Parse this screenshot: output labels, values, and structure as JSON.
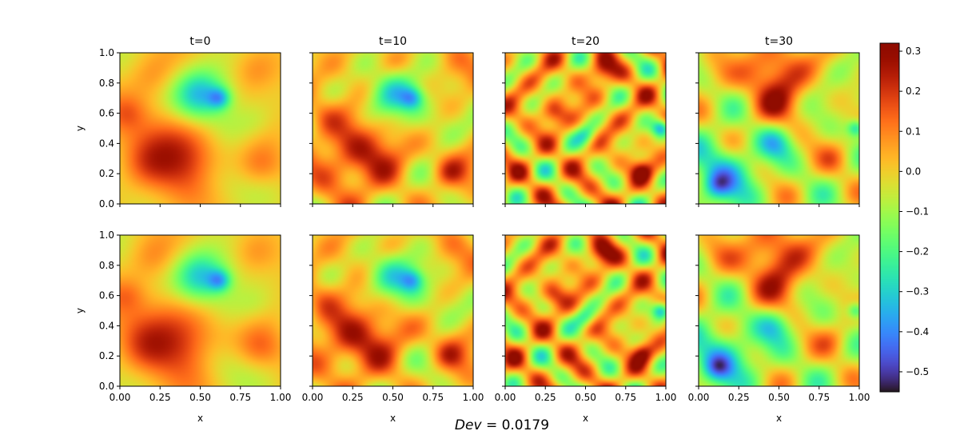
{
  "figure": {
    "panel_titles": [
      "t=0",
      "t=10",
      "t=20",
      "t=30"
    ],
    "xlabel": "x",
    "ylabel": "y",
    "x_ticks": [
      "0.00",
      "0.25",
      "0.50",
      "0.75",
      "1.00"
    ],
    "y_ticks": [
      "0.0",
      "0.2",
      "0.4",
      "0.6",
      "0.8",
      "1.0"
    ],
    "colorbar_ticks": [
      "0.3",
      "0.2",
      "0.1",
      "0.0",
      "−0.1",
      "−0.2",
      "−0.3",
      "−0.4",
      "−0.5"
    ],
    "footer_label": "Dev",
    "footer_value": "= 0.0179"
  },
  "chart_data": {
    "type": "heatmap",
    "rows": [
      "row 1",
      "row 2"
    ],
    "columns": [
      "t=0",
      "t=10",
      "t=20",
      "t=30"
    ],
    "xlabel": "x",
    "ylabel": "y",
    "xlim": [
      0,
      1
    ],
    "ylim": [
      0,
      1
    ],
    "colormap": "turbo",
    "color_range": [
      -0.55,
      0.32
    ],
    "colorbar_ticks": [
      0.3,
      0.2,
      0.1,
      0.0,
      -0.1,
      -0.2,
      -0.3,
      -0.4,
      -0.5
    ],
    "grid": false,
    "summary": {
      "Dev": 0.0179
    }
  }
}
